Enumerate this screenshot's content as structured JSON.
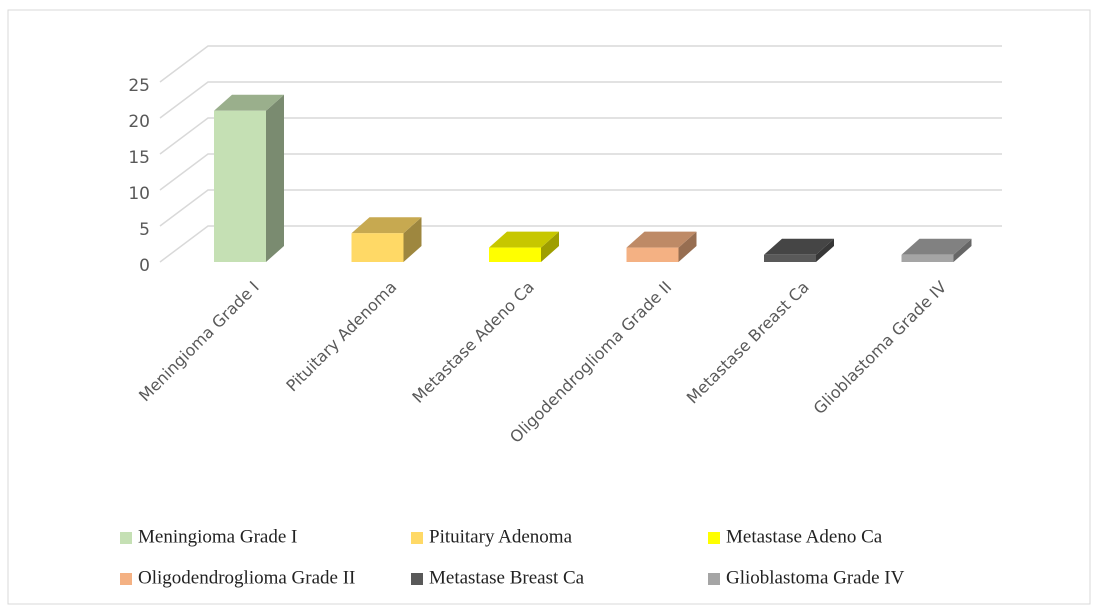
{
  "chart_data": {
    "type": "bar3d",
    "categories": [
      "Meningioma Grade I",
      "Pituitary Adenoma",
      "Metastase Adeno Ca",
      "Oligodendroglioma Grade II",
      "Metastase Breast Ca",
      "Glioblastoma Grade IV"
    ],
    "values": [
      21,
      4,
      2,
      2,
      1,
      1
    ],
    "colors": [
      "#c5e0b4",
      "#ffd966",
      "#ffff00",
      "#f4b183",
      "#595959",
      "#a5a5a5"
    ],
    "ylim": [
      0,
      25
    ],
    "yticks": [
      0,
      5,
      10,
      15,
      20,
      25
    ],
    "grid": true,
    "legend": "bottom"
  }
}
